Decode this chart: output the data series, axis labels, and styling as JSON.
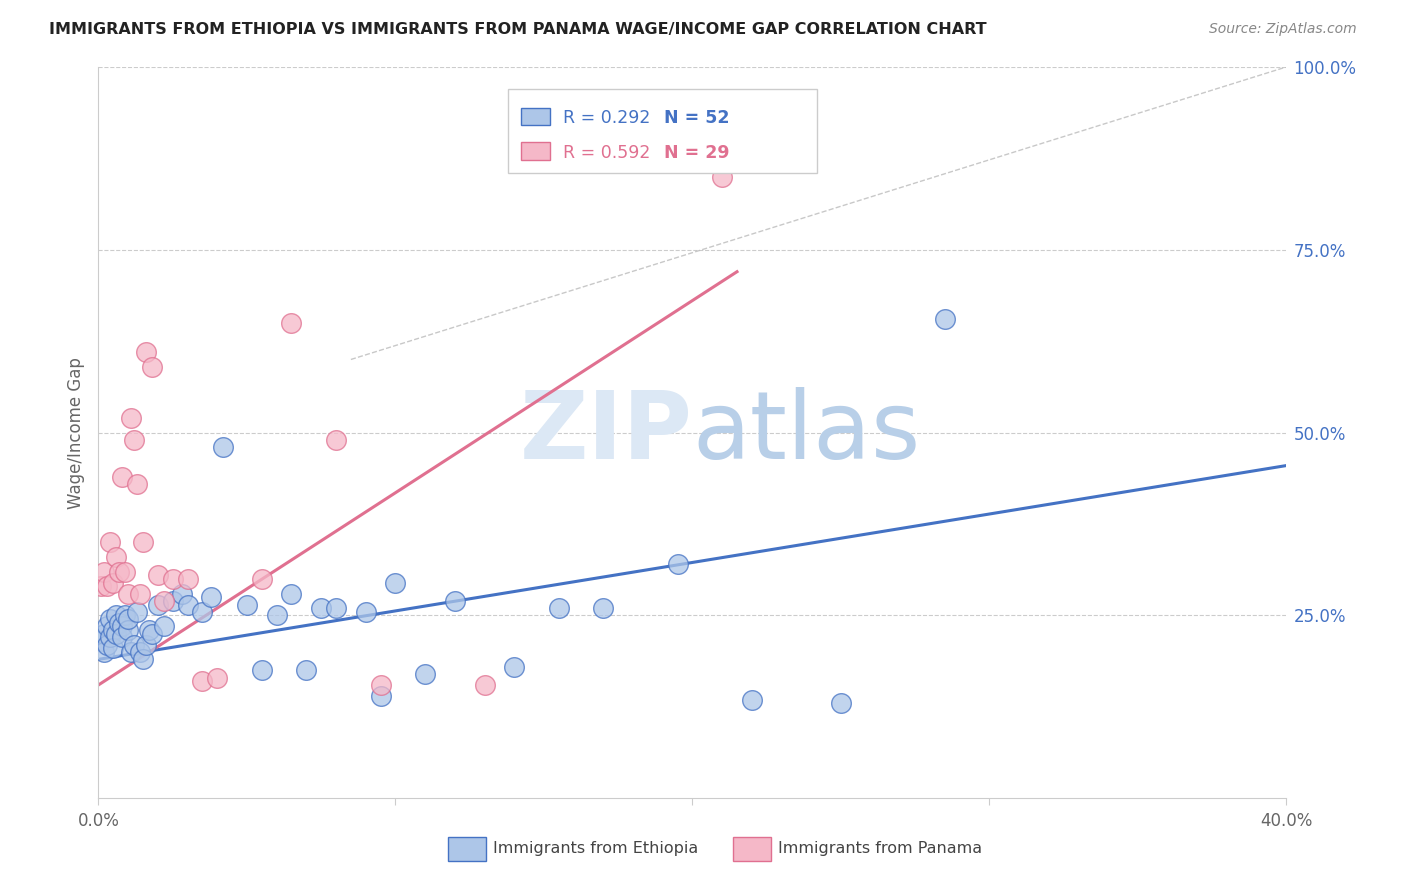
{
  "title": "IMMIGRANTS FROM ETHIOPIA VS IMMIGRANTS FROM PANAMA WAGE/INCOME GAP CORRELATION CHART",
  "source": "Source: ZipAtlas.com",
  "ylabel": "Wage/Income Gap",
  "xlim": [
    0.0,
    0.4
  ],
  "ylim": [
    0.0,
    1.0
  ],
  "xticks": [
    0.0,
    0.1,
    0.2,
    0.3,
    0.4
  ],
  "xtick_labels": [
    "0.0%",
    "",
    "",
    "",
    "40.0%"
  ],
  "ytick_positions": [
    0.25,
    0.5,
    0.75,
    1.0
  ],
  "ytick_labels": [
    "25.0%",
    "50.0%",
    "75.0%",
    "100.0%"
  ],
  "ethiopia_R": 0.292,
  "ethiopia_N": 52,
  "panama_R": 0.592,
  "panama_N": 29,
  "ethiopia_color": "#adc6e8",
  "panama_color": "#f5b8c8",
  "ethiopia_line_color": "#4472c4",
  "panama_line_color": "#e07090",
  "watermark_color": "#d0dff2",
  "background_color": "#ffffff",
  "grid_color": "#cccccc",
  "ethiopia_scatter_x": [
    0.001,
    0.002,
    0.002,
    0.003,
    0.003,
    0.004,
    0.004,
    0.005,
    0.005,
    0.006,
    0.006,
    0.007,
    0.008,
    0.008,
    0.009,
    0.01,
    0.01,
    0.011,
    0.012,
    0.013,
    0.014,
    0.015,
    0.016,
    0.017,
    0.018,
    0.02,
    0.022,
    0.025,
    0.028,
    0.03,
    0.035,
    0.038,
    0.042,
    0.05,
    0.055,
    0.06,
    0.065,
    0.07,
    0.075,
    0.08,
    0.09,
    0.095,
    0.1,
    0.11,
    0.12,
    0.14,
    0.155,
    0.17,
    0.195,
    0.22,
    0.25,
    0.285
  ],
  "ethiopia_scatter_y": [
    0.215,
    0.225,
    0.2,
    0.235,
    0.21,
    0.22,
    0.245,
    0.23,
    0.205,
    0.25,
    0.225,
    0.24,
    0.235,
    0.22,
    0.25,
    0.23,
    0.245,
    0.2,
    0.21,
    0.255,
    0.2,
    0.19,
    0.21,
    0.23,
    0.225,
    0.265,
    0.235,
    0.27,
    0.28,
    0.265,
    0.255,
    0.275,
    0.48,
    0.265,
    0.175,
    0.25,
    0.28,
    0.175,
    0.26,
    0.26,
    0.255,
    0.14,
    0.295,
    0.17,
    0.27,
    0.18,
    0.26,
    0.26,
    0.32,
    0.135,
    0.13,
    0.655
  ],
  "panama_scatter_x": [
    0.001,
    0.002,
    0.003,
    0.004,
    0.005,
    0.006,
    0.007,
    0.008,
    0.009,
    0.01,
    0.011,
    0.012,
    0.013,
    0.014,
    0.015,
    0.016,
    0.018,
    0.02,
    0.022,
    0.025,
    0.03,
    0.035,
    0.04,
    0.055,
    0.065,
    0.08,
    0.095,
    0.13,
    0.21
  ],
  "panama_scatter_y": [
    0.29,
    0.31,
    0.29,
    0.35,
    0.295,
    0.33,
    0.31,
    0.44,
    0.31,
    0.28,
    0.52,
    0.49,
    0.43,
    0.28,
    0.35,
    0.61,
    0.59,
    0.305,
    0.27,
    0.3,
    0.3,
    0.16,
    0.165,
    0.3,
    0.65,
    0.49,
    0.155,
    0.155,
    0.85
  ],
  "ethiopia_line_x": [
    0.0,
    0.4
  ],
  "ethiopia_line_y": [
    0.19,
    0.455
  ],
  "panama_line_x": [
    0.0,
    0.215
  ],
  "panama_line_y": [
    0.155,
    0.72
  ],
  "diag_line_x": [
    0.085,
    0.4
  ],
  "diag_line_y": [
    0.6,
    1.0
  ]
}
